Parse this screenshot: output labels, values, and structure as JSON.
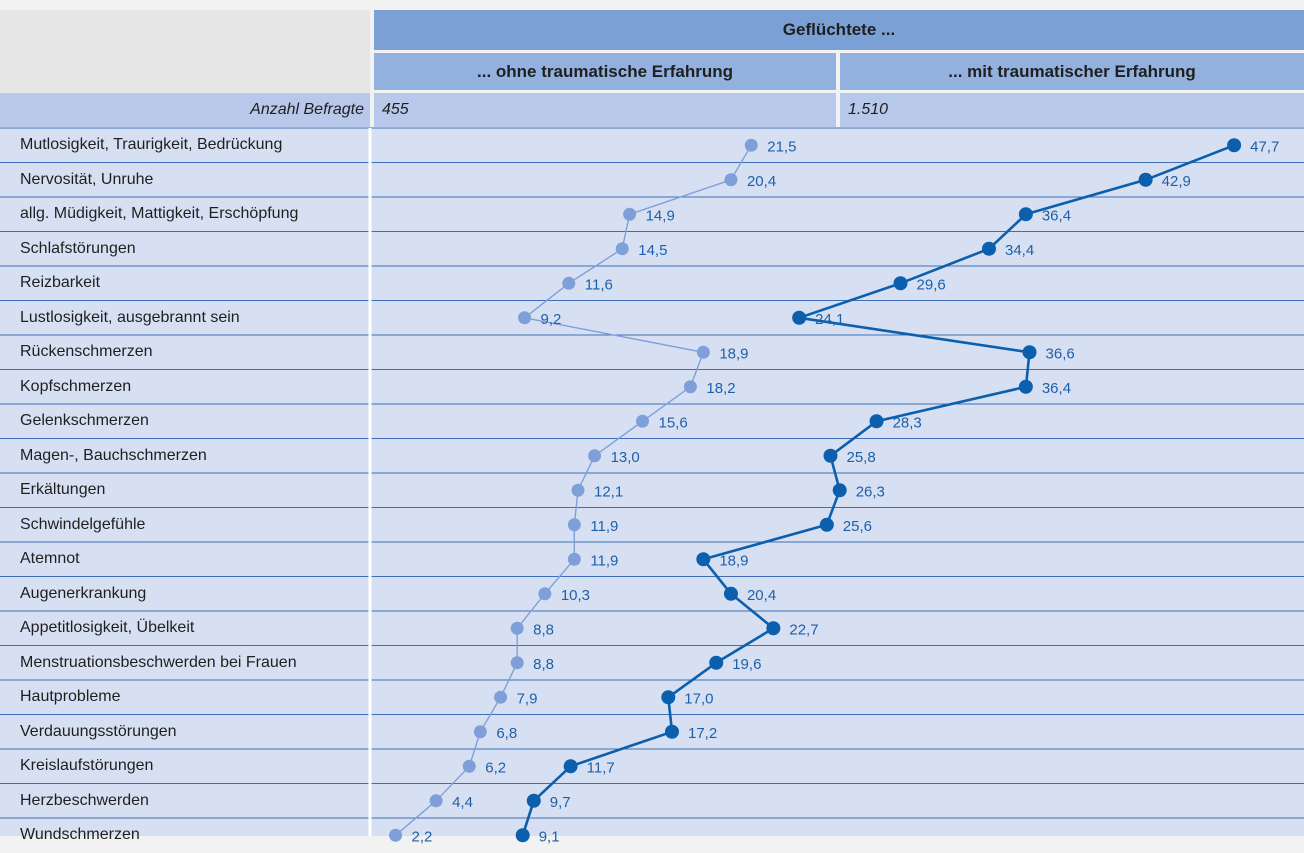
{
  "header": {
    "group_title": "Geflüchtete ...",
    "col1_title": "... ohne traumatische Erfahrung",
    "col2_title": "... mit traumatischer Erfahrung",
    "count_label": "Anzahl Befragte",
    "col1_count": "455",
    "col2_count": "1.510"
  },
  "colors": {
    "background": "#f2f2f2",
    "header_dark": "#7ba0d6",
    "header_mid": "#93b1de",
    "header_light": "#b7c8ea",
    "row_fill": "#d7e0f3",
    "row_line": "#3e6fb5",
    "series1": "#7f9fd8",
    "series2": "#0b5fad",
    "label_text": "#1f5fa9"
  },
  "chart_data": {
    "type": "line",
    "xlabel": "",
    "ylabel": "",
    "categories": [
      "Mutlosigkeit, Traurigkeit, Bedrückung",
      "Nervosität, Unruhe",
      "allg. Müdigkeit, Mattigkeit, Erschöpfung",
      "Schlafstörungen",
      "Reizbarkeit",
      "Lustlosigkeit, ausgebrannt sein",
      "Rückenschmerzen",
      "Kopfschmerzen",
      "Gelenkschmerzen",
      "Magen-, Bauchschmerzen",
      "Erkältungen",
      "Schwindelgefühle",
      "Atemnot",
      "Augenerkrankung",
      "Appetitlosigkeit, Übelkeit",
      "Menstruationsbeschwerden bei Frauen",
      "Hautprobleme",
      "Verdauungsstörungen",
      "Kreislaufstörungen",
      "Herzbeschwerden",
      "Wundschmerzen"
    ],
    "series": [
      {
        "name": "... ohne traumatische Erfahrung",
        "values": [
          21.5,
          20.4,
          14.9,
          14.5,
          11.6,
          9.2,
          18.9,
          18.2,
          15.6,
          13.0,
          12.1,
          11.9,
          11.9,
          10.3,
          8.8,
          8.8,
          7.9,
          6.8,
          6.2,
          4.4,
          2.2
        ],
        "labels": [
          "21,5",
          "20,4",
          "14,9",
          "14,5",
          "11,6",
          "9,2",
          "18,9",
          "18,2",
          "15,6",
          "13,0",
          "12,1",
          "11,9",
          "11,9",
          "10,3",
          "8,8",
          "8,8",
          "7,9",
          "6,8",
          "6,2",
          "4,4",
          "2,2"
        ]
      },
      {
        "name": "... mit traumatischer Erfahrung",
        "values": [
          47.7,
          42.9,
          36.4,
          34.4,
          29.6,
          24.1,
          36.6,
          36.4,
          28.3,
          25.8,
          26.3,
          25.6,
          18.9,
          20.4,
          22.7,
          19.6,
          17.0,
          17.2,
          11.7,
          9.7,
          9.1
        ],
        "labels": [
          "47,7",
          "42,9",
          "36,4",
          "34,4",
          "29,6",
          "24,1",
          "36,6",
          "36,4",
          "28,3",
          "25,8",
          "26,3",
          "25,6",
          "18,9",
          "20,4",
          "22,7",
          "19,6",
          "17,0",
          "17,2",
          "11,7",
          "9,7",
          "9,1"
        ]
      }
    ],
    "grid": false
  }
}
